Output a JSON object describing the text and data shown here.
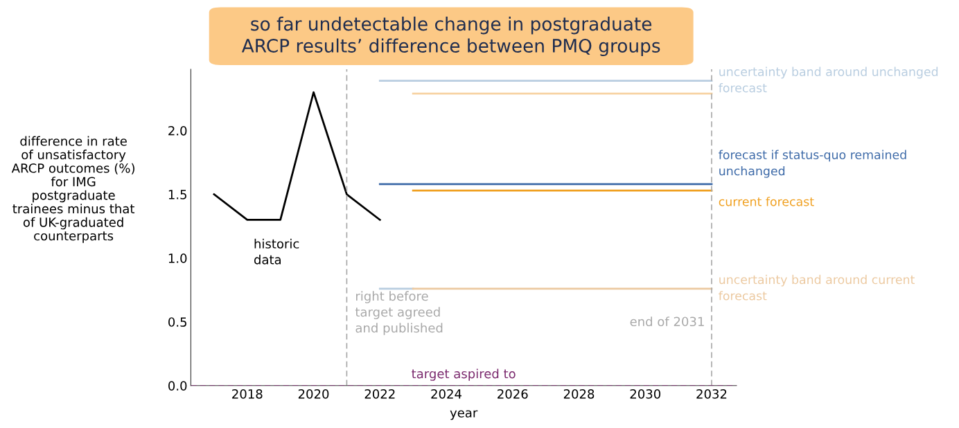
{
  "chart_data": {
    "type": "line",
    "title": "so far undetectable change in postgraduate\nARCP results’ difference between PMQ groups",
    "xlabel": "year",
    "ylabel": "difference in rate\nof unsatisfactory\nARCP outcomes (%)\nfor IMG\npostgraduate\ntrainees minus that\nof UK-graduated\ncounterparts",
    "xlim": [
      2016.3,
      2032.75
    ],
    "xticks": [
      2018,
      2020,
      2022,
      2024,
      2026,
      2028,
      2030,
      2032
    ],
    "ylim": [
      0,
      2.48
    ],
    "yticks": [
      {
        "value": 0,
        "label": "0.0"
      },
      {
        "value": 0.5,
        "label": "0.5"
      },
      {
        "value": 1,
        "label": "1.0"
      },
      {
        "value": 1.5,
        "label": "1.5"
      },
      {
        "value": 2,
        "label": "2.0"
      }
    ],
    "grid": false,
    "legend": false,
    "marker": "none",
    "line_style": "solid",
    "series": [
      {
        "color": "#000000",
        "x": [
          2017,
          2018,
          2019,
          2020,
          2021,
          2022
        ],
        "values": [
          1.5,
          1.3,
          1.3,
          2.3,
          1.5,
          1.3
        ]
      },
      {
        "name": "uncertainty band around unchanged\nforecast",
        "color": "#b8cde0",
        "x": [
          2022,
          2032
        ],
        "values": [
          2.39,
          2.39
        ]
      },
      {
        "color": "#f7d3a3",
        "x": [
          2023,
          2032
        ],
        "values": [
          2.29,
          2.29
        ]
      },
      {
        "name": "forecast if status-quo remained\nunchanged",
        "color": "#3d6aa8",
        "x": [
          2022,
          2032
        ],
        "values": [
          1.58,
          1.58
        ]
      },
      {
        "name": "current forecast",
        "color": "#f0a020",
        "x": [
          2023,
          2032
        ],
        "values": [
          1.53,
          1.53
        ]
      },
      {
        "color": "#b8cde0",
        "x": [
          2022,
          2023
        ],
        "values": [
          0.76,
          0.76
        ]
      },
      {
        "name": "uncertainty band around current\nforecast",
        "color": "#ecc9a0",
        "x": [
          2023,
          2032
        ],
        "values": [
          0.76,
          0.76
        ]
      }
    ],
    "ref_lines": [
      {
        "axis": "x",
        "value": 2021,
        "label": "right before\ntarget agreed\nand published",
        "color": "#a8a8a8",
        "line_style": "dashed"
      },
      {
        "axis": "x",
        "value": 2032,
        "label": "end of 2031",
        "color": "#a8a8a8",
        "line_style": "dashed"
      },
      {
        "axis": "y",
        "value": 0,
        "label": "target aspired to",
        "color": "#7b2a6e",
        "line_style": "dashed"
      }
    ],
    "annotations": [
      "historic\ndata"
    ]
  }
}
